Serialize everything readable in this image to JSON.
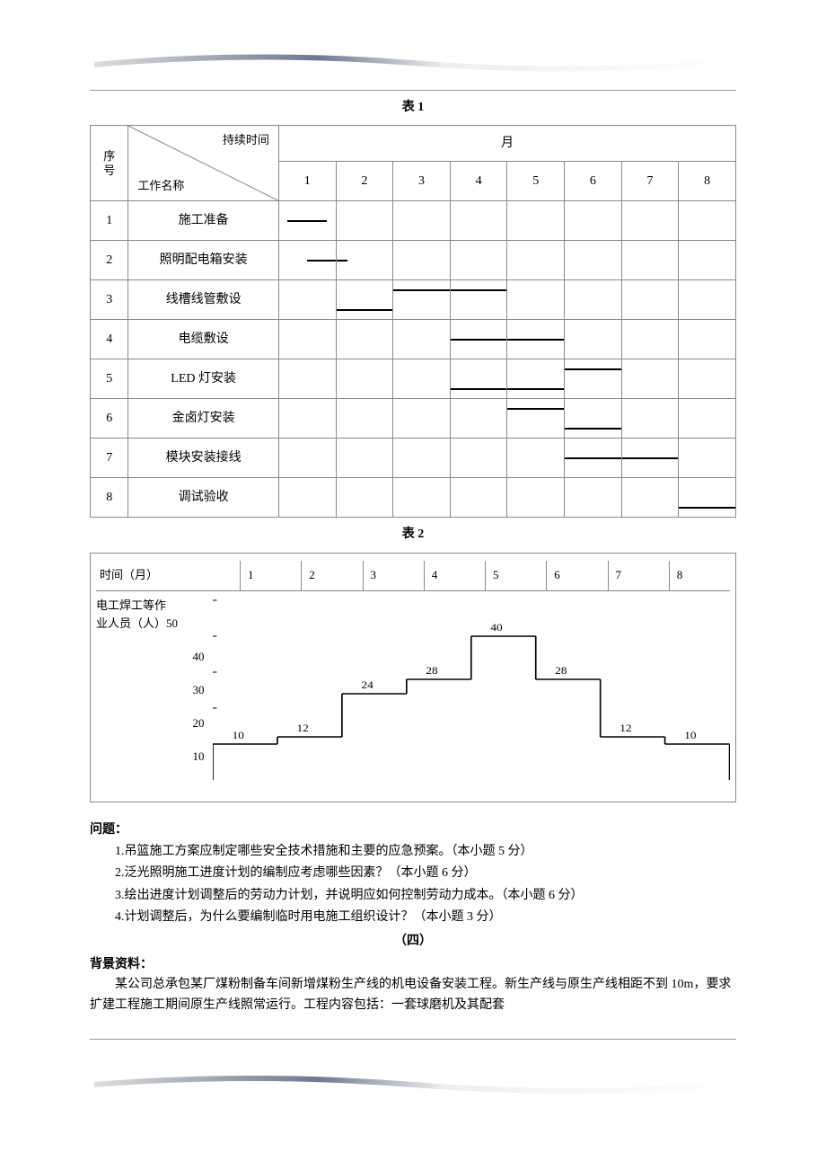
{
  "decoration": {
    "stroke": "#7a8aa0"
  },
  "table1_title": "表 1",
  "table1": {
    "col_seq_header1": "序",
    "col_seq_header2": "号",
    "diag_top": "持续时间",
    "diag_bottom": "工作名称",
    "month_header": "月",
    "months": [
      "1",
      "2",
      "3",
      "4",
      "5",
      "6",
      "7",
      "8"
    ],
    "rows": [
      {
        "seq": "1",
        "name": "施工准备",
        "bars": [
          {
            "left": "15%",
            "width": "70%",
            "col": 0
          }
        ]
      },
      {
        "seq": "2",
        "name": "照明配电箱安装",
        "bars": [
          {
            "left": "50%",
            "width": "50%",
            "col": 0
          },
          {
            "left": "0%",
            "width": "20%",
            "col": 1
          }
        ]
      },
      {
        "seq": "3",
        "name": "线槽线管敷设",
        "bars": [
          {
            "left": "0%",
            "width": "100%",
            "col": 1,
            "valign": "bottom"
          },
          {
            "left": "0%",
            "width": "100%",
            "col": 2,
            "valign": "top"
          },
          {
            "left": "0%",
            "width": "100%",
            "col": 3,
            "valign": "top"
          }
        ]
      },
      {
        "seq": "4",
        "name": "电缆敷设",
        "bars": [
          {
            "left": "0%",
            "width": "100%",
            "col": 3
          },
          {
            "left": "0%",
            "width": "100%",
            "col": 4
          }
        ]
      },
      {
        "seq": "5",
        "name": "LED 灯安装",
        "bars": [
          {
            "left": "0%",
            "width": "100%",
            "col": 3,
            "valign": "bottom"
          },
          {
            "left": "0%",
            "width": "100%",
            "col": 4,
            "valign": "bottom"
          },
          {
            "left": "0%",
            "width": "100%",
            "col": 5,
            "valign": "top"
          }
        ]
      },
      {
        "seq": "6",
        "name": "金卤灯安装",
        "bars": [
          {
            "left": "0%",
            "width": "100%",
            "col": 4,
            "valign": "top"
          },
          {
            "left": "0%",
            "width": "100%",
            "col": 5,
            "valign": "bottom"
          }
        ]
      },
      {
        "seq": "7",
        "name": "模块安装接线",
        "bars": [
          {
            "left": "0%",
            "width": "100%",
            "col": 5
          },
          {
            "left": "0%",
            "width": "100%",
            "col": 6
          }
        ]
      },
      {
        "seq": "8",
        "name": "调试验收",
        "bars": [
          {
            "left": "0%",
            "width": "100%",
            "col": 7,
            "valign": "bottom"
          }
        ]
      }
    ]
  },
  "table2_title": "表 2",
  "chart": {
    "time_label": "时间（月）",
    "months": [
      "1",
      "2",
      "3",
      "4",
      "5",
      "6",
      "7",
      "8"
    ],
    "axis_text1": "电工焊工等作",
    "axis_text2": "业人员（人）50",
    "y_ticks": [
      "40",
      "30",
      "20",
      "10"
    ],
    "values": [
      10,
      12,
      24,
      28,
      40,
      28,
      12,
      10
    ],
    "value_labels": [
      "10",
      "12",
      "24",
      "28",
      "40",
      "28",
      "12",
      "10"
    ],
    "baseline_y": 210,
    "scale": 4,
    "bar_color": "#000"
  },
  "questions_heading": "问题：",
  "questions": [
    "1.吊篮施工方案应制定哪些安全技术措施和主要的应急预案。（本小题 5 分）",
    "2.泛光照明施工进度计划的编制应考虑哪些因素？（本小题 6 分）",
    "3.绘出进度计划调整后的劳动力计划，并说明应如何控制劳动力成本。（本小题 6 分）",
    "4.计划调整后，为什么要编制临时用电施工组织设计？（本小题 3 分）"
  ],
  "section4_label": "（四）",
  "bg_heading": "背景资料：",
  "bg_para": "某公司总承包某厂煤粉制备车间新增煤粉生产线的机电设备安装工程。新生产线与原生产线相距不到 10m，要求扩建工程施工期间原生产线照常运行。工程内容包括：一套球磨机及其配套"
}
